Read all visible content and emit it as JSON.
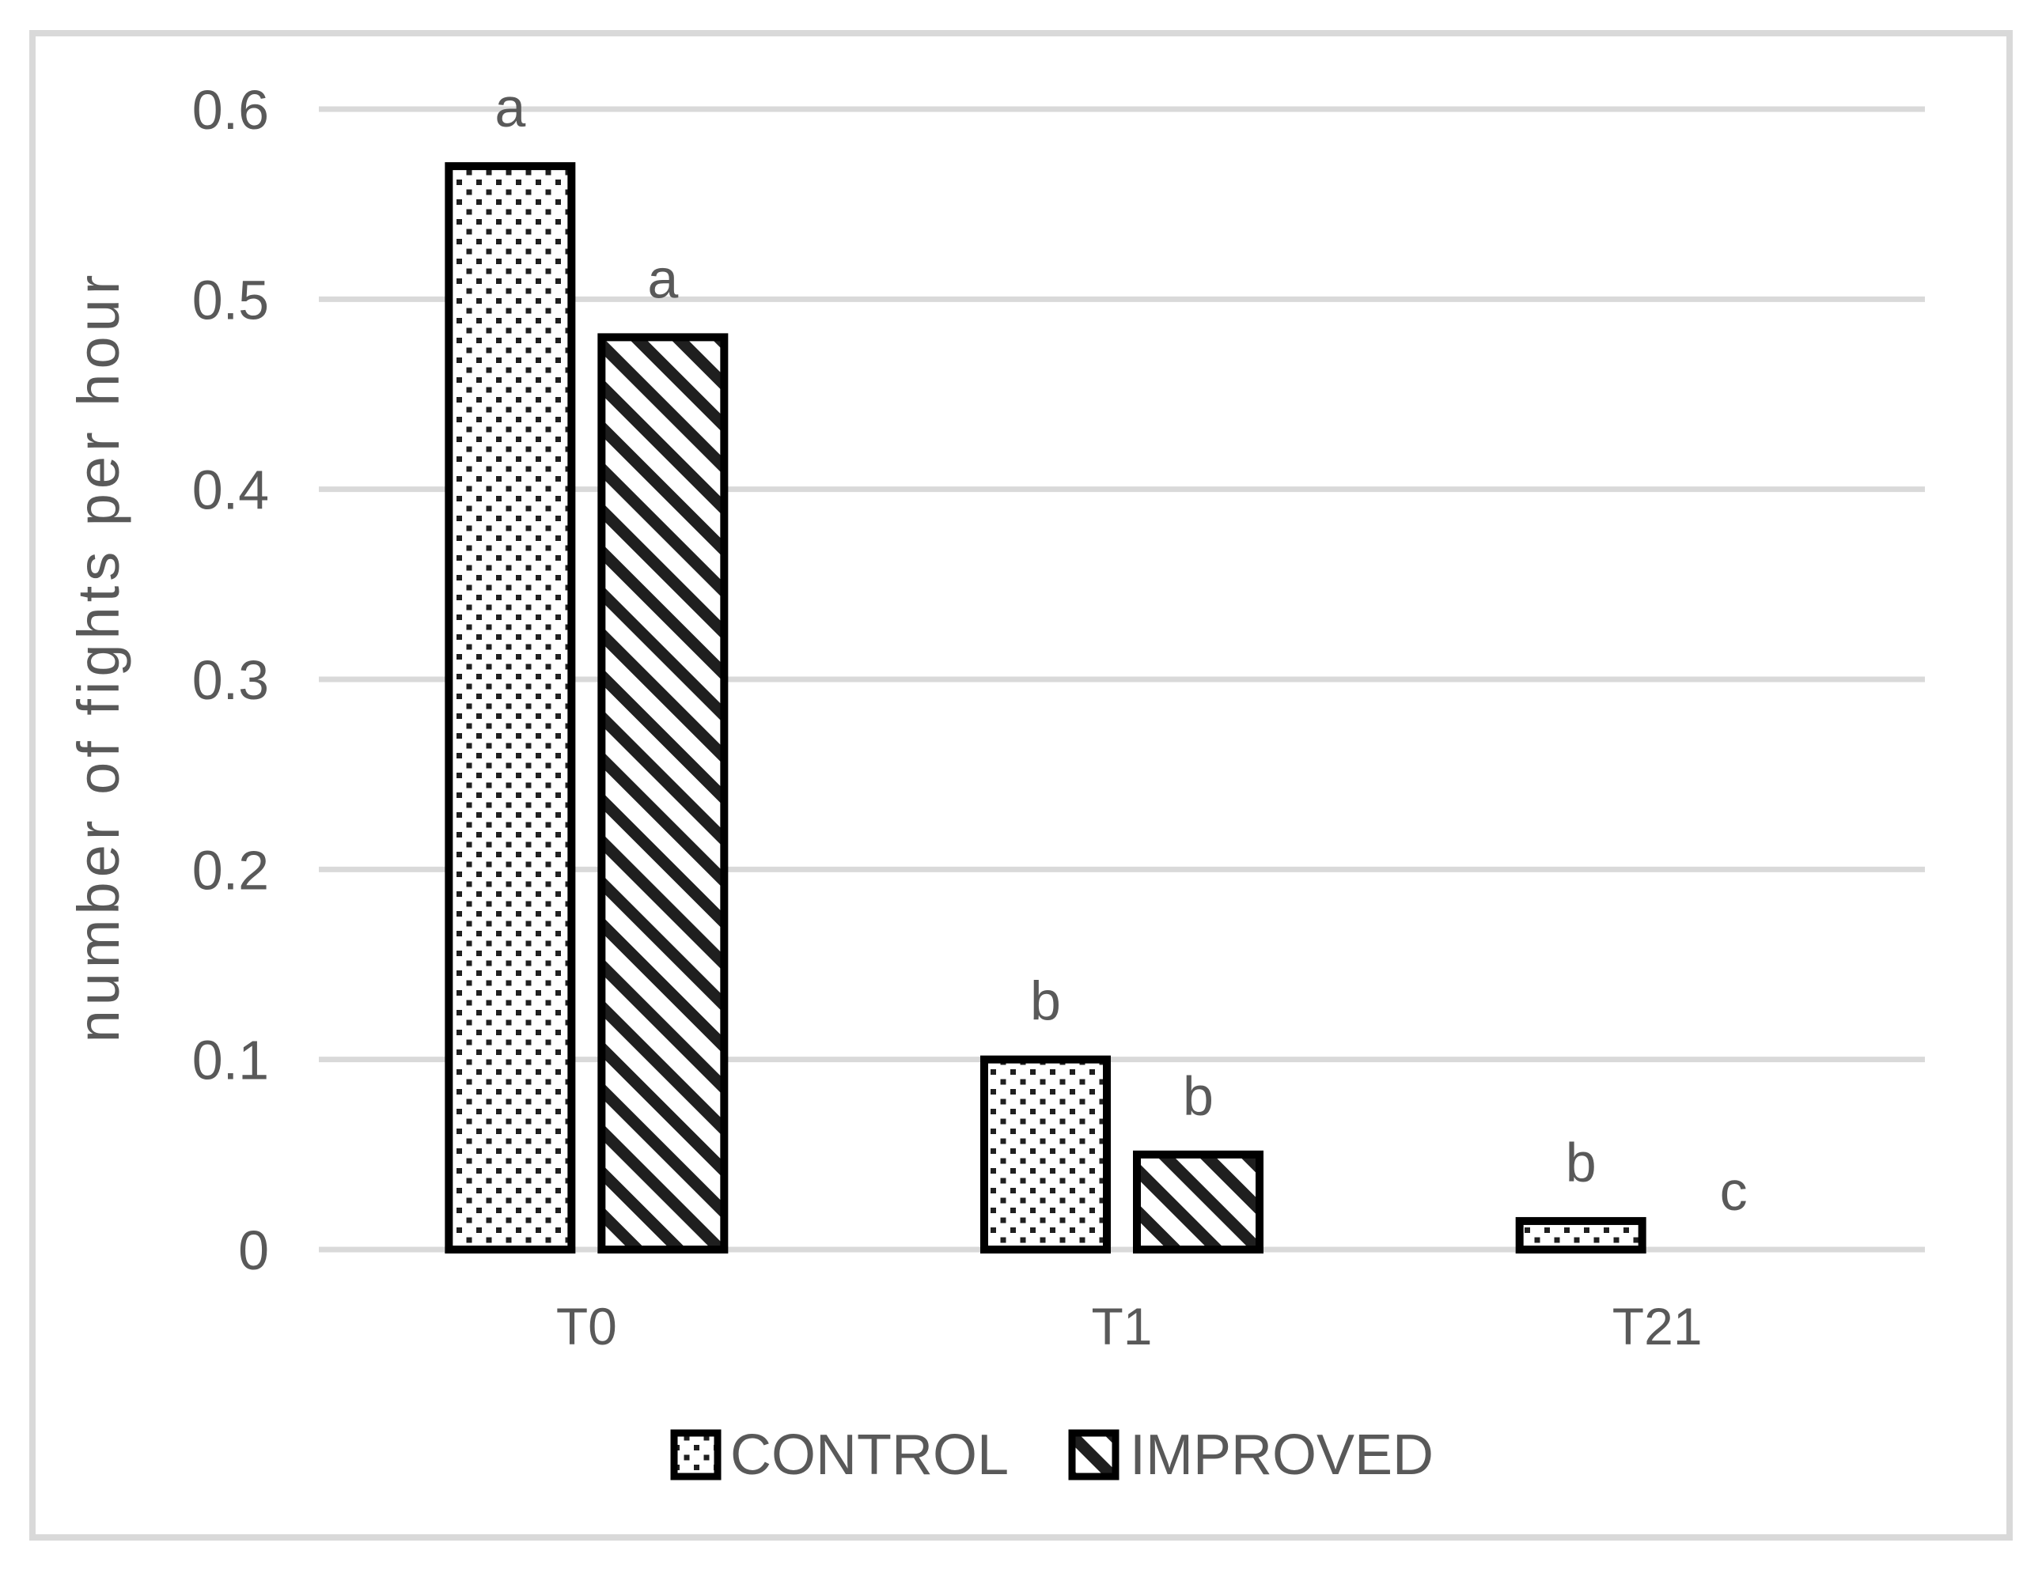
{
  "chart_data": {
    "type": "bar",
    "title": "",
    "xlabel": "",
    "ylabel": "number of fights per hour",
    "categories": [
      "T0",
      "T1",
      "T21"
    ],
    "series": [
      {
        "name": "CONTROL",
        "pattern": "dotted",
        "values": [
          0.57,
          0.1,
          0.015
        ],
        "annotations": [
          "a",
          "b",
          "b"
        ]
      },
      {
        "name": "IMPROVED",
        "pattern": "diagonal-stripes",
        "values": [
          0.48,
          0.05,
          0
        ],
        "annotations": [
          "a",
          "b",
          "c"
        ]
      }
    ],
    "ylim": [
      0,
      0.6
    ],
    "y_tick_values": [
      0,
      0.1,
      0.2,
      0.3,
      0.4,
      0.5,
      0.6
    ],
    "y_tick_labels": [
      "0",
      "0.1",
      "0.2",
      "0.3",
      "0.4",
      "0.5",
      "0.6"
    ],
    "grid": "horizontal",
    "legend_position": "bottom",
    "colors": {
      "background": "#ffffff",
      "frame_border": "#d9d9d9",
      "grid_line": "#d9d9d9",
      "bar_border": "#000000",
      "pattern_ink": "#1f1f1f",
      "text": "#595959"
    }
  }
}
